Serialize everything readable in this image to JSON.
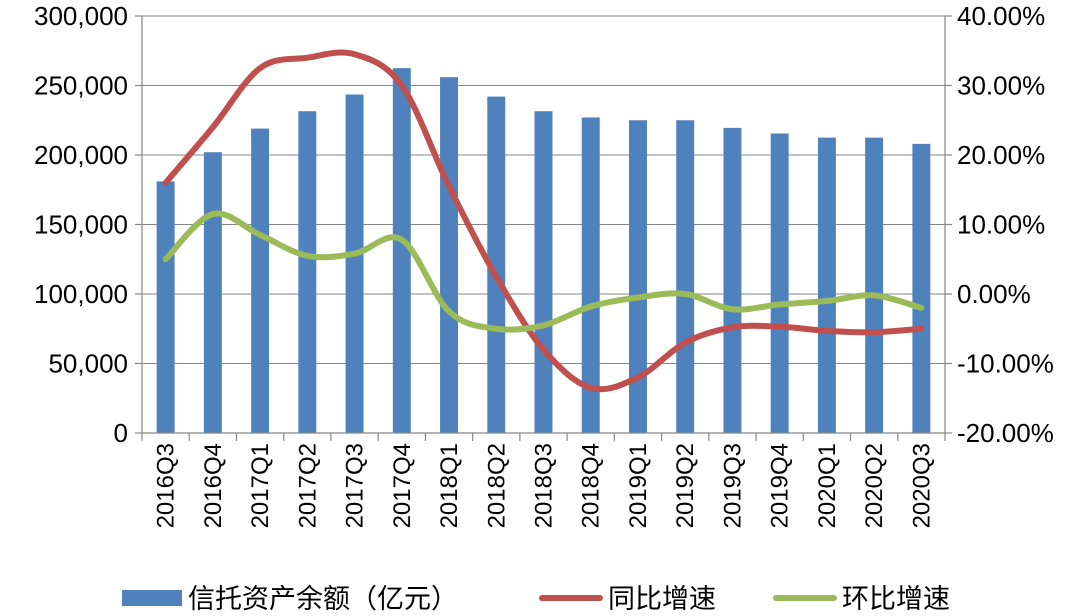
{
  "chart_data": {
    "type": "bar",
    "categories": [
      "2016Q3",
      "2016Q4",
      "2017Q1",
      "2017Q2",
      "2017Q3",
      "2017Q4",
      "2018Q1",
      "2018Q2",
      "2018Q3",
      "2018Q4",
      "2019Q1",
      "2019Q2",
      "2019Q3",
      "2019Q4",
      "2020Q1",
      "2020Q2",
      "2020Q3"
    ],
    "series": [
      {
        "name": "信托资产余额（亿元）",
        "type": "bar",
        "axis": "left",
        "color": "#4F81BD",
        "values": [
          181000,
          202000,
          219000,
          231500,
          243500,
          262500,
          256000,
          242000,
          231500,
          227000,
          225000,
          225000,
          219500,
          215500,
          212500,
          212500,
          208000
        ]
      },
      {
        "name": "同比增速",
        "type": "line",
        "axis": "right",
        "color": "#C0504D",
        "values": [
          16.0,
          24.0,
          32.5,
          34.0,
          34.5,
          30.0,
          15.5,
          2.5,
          -8.0,
          -13.5,
          -12.0,
          -7.0,
          -4.8,
          -4.7,
          -5.3,
          -5.5,
          -5.0
        ]
      },
      {
        "name": "环比增速",
        "type": "line",
        "axis": "right",
        "color": "#9BBB59",
        "values": [
          5.0,
          11.5,
          8.5,
          5.5,
          5.8,
          7.8,
          -2.5,
          -5.0,
          -4.5,
          -1.8,
          -0.5,
          0.0,
          -2.2,
          -1.5,
          -1.0,
          -0.2,
          -2.0
        ]
      }
    ],
    "y_left": {
      "ylim": [
        0,
        300000
      ],
      "ticks": [
        0,
        50000,
        100000,
        150000,
        200000,
        250000,
        300000
      ],
      "tick_labels": [
        "0",
        "50,000",
        "100,000",
        "150,000",
        "200,000",
        "250,000",
        "300,000"
      ]
    },
    "y_right": {
      "ylim": [
        -20,
        40
      ],
      "ticks": [
        -20,
        -10,
        0,
        10,
        20,
        30,
        40
      ],
      "tick_labels": [
        "-20.00%",
        "-10.00%",
        "0.00%",
        "10.00%",
        "20.00%",
        "30.00%",
        "40.00%"
      ]
    },
    "grid": true,
    "legend": "bottom"
  }
}
